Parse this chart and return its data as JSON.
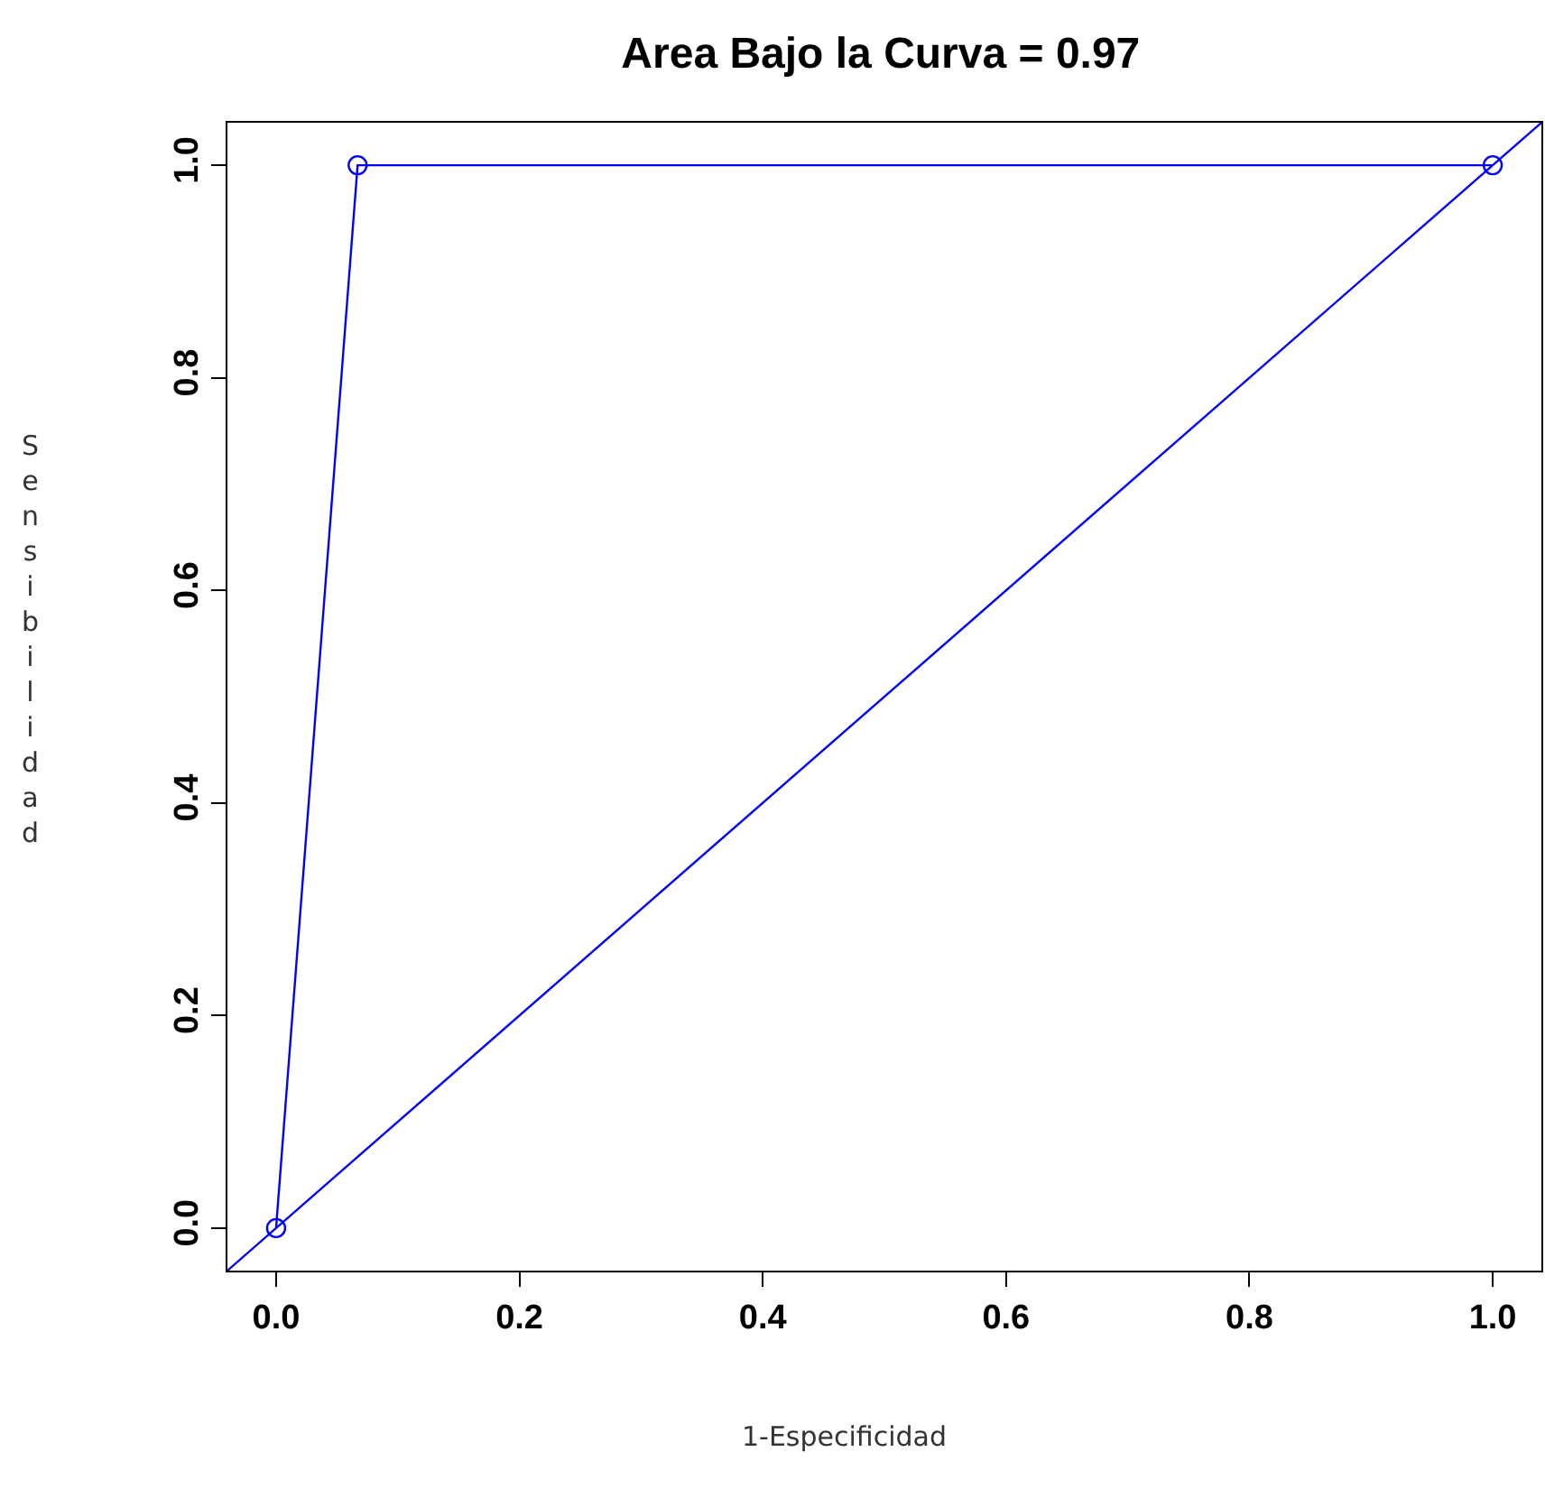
{
  "chart_data": {
    "type": "line",
    "title": "Area Bajo la Curva = 0.97",
    "xlabel": "1-Especificidad",
    "ylabel": "Sensibilidad",
    "series": [
      {
        "color": "#0000ff",
        "marker": "circle",
        "x": [
          0.0,
          0.067,
          1.0
        ],
        "values": [
          0.0,
          1.0,
          1.0
        ]
      },
      {
        "color": "#0000ff",
        "marker": "none",
        "x": [
          -0.04,
          1.04
        ],
        "values": [
          -0.04,
          1.04
        ]
      }
    ],
    "xlim": [
      -0.04,
      1.04
    ],
    "ylim": [
      -0.04,
      1.04
    ],
    "xticks": [
      {
        "value": 0,
        "label": "0.0"
      },
      0.2,
      0.4,
      0.6,
      0.8,
      {
        "value": 1,
        "label": "1.0"
      }
    ],
    "yticks": [
      {
        "value": 0,
        "label": "0.0"
      },
      0.2,
      0.4,
      0.6,
      0.8,
      {
        "value": 1,
        "label": "1.0"
      }
    ]
  }
}
